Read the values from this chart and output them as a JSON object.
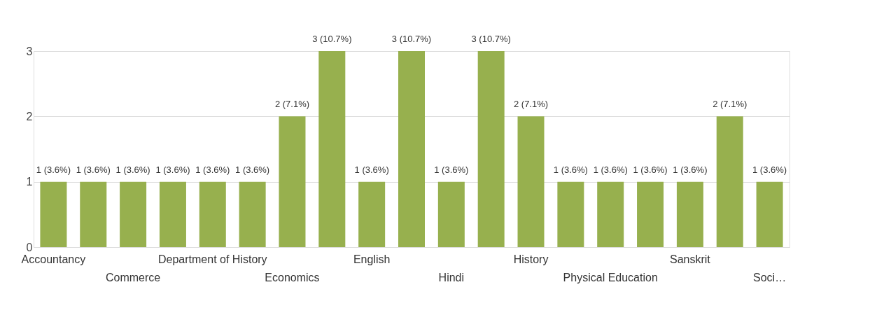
{
  "chart_data": {
    "type": "bar",
    "categories": [
      "Accountancy",
      null,
      "Commerce",
      null,
      "Department of History",
      null,
      "Economics",
      null,
      "English",
      null,
      "Hindi",
      null,
      "History",
      null,
      "Physical Education",
      null,
      "Sanskrit",
      null,
      "Soci…"
    ],
    "values": [
      1,
      1,
      1,
      1,
      1,
      1,
      2,
      3,
      1,
      3,
      1,
      3,
      2,
      1,
      1,
      1,
      1,
      2,
      1
    ],
    "value_labels": [
      "1 (3.6%)",
      "1 (3.6%)",
      "1 (3.6%)",
      "1 (3.6%)",
      "1 (3.6%)",
      "1 (3.6%)",
      "2 (7.1%)",
      "3 (10.7%)",
      "1 (3.6%)",
      "3 (10.7%)",
      "1 (3.6%)",
      "3 (10.7%)",
      "2 (7.1%)",
      "1 (3.6%)",
      "1 (3.6%)",
      "1 (3.6%)",
      "1 (3.6%)",
      "2 (7.1%)",
      "1 (3.6%)"
    ],
    "color": "#97b04e",
    "ylim": [
      0,
      3
    ],
    "yticks": [
      0,
      1,
      2,
      3
    ],
    "grid": "y"
  }
}
